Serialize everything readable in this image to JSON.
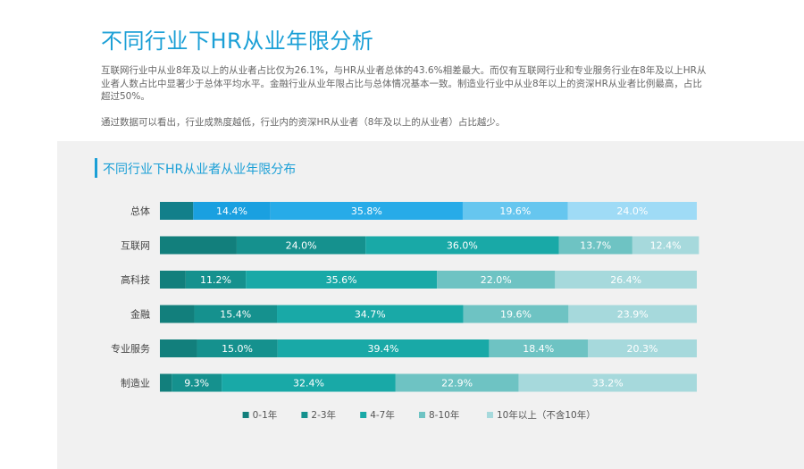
{
  "page": {
    "title": "不同行业下HR从业年限分析",
    "paragraph1": "互联网行业中从业8年及以上的从业者占比仅为26.1%，与HR从业者总体的43.6%相差最大。而仅有互联网行业和专业服务行业在8年及以上HR从业者人数占比中显著少于总体平均水平。金融行业从业年限占比与总体情况基本一致。制造业行业中从业8年以上的资深HR从业者比例最高，占比超过50%。",
    "paragraph2": "通过数据可以看出，行业成熟度越低，行业内的资深HR从业者（8年及以上的从业者）占比越少。"
  },
  "chart_data": {
    "type": "bar",
    "orientation": "horizontal",
    "stacked": true,
    "normalized_percent": true,
    "title": "不同行业下HR从业者从业年限分布",
    "categories": [
      "总体",
      "互联网",
      "高科技",
      "金融",
      "专业服务",
      "制造业"
    ],
    "series": [
      {
        "name": "0-1年",
        "color": "#127f8a",
        "values": [
          6.2,
          14.3,
          4.8,
          6.4,
          6.9,
          2.2
        ],
        "labels": [
          "",
          "",
          "",
          "",
          "",
          ""
        ]
      },
      {
        "name": "2-3年",
        "color": "#1aa0e0",
        "values": [
          14.4,
          24.0,
          11.2,
          15.4,
          15.0,
          9.3
        ],
        "labels": [
          "14.4%",
          "24.0%",
          "11.2%",
          "15.4%",
          "15.0%",
          "9.3%"
        ]
      },
      {
        "name": "4-7年",
        "color": "#27abe8",
        "values": [
          35.8,
          36.0,
          35.6,
          34.7,
          39.4,
          32.4
        ],
        "labels": [
          "35.8%",
          "36.0%",
          "35.6%",
          "34.7%",
          "39.4%",
          "32.4%"
        ]
      },
      {
        "name": "8-10年",
        "color": "#66c6ef",
        "values": [
          19.6,
          13.7,
          22.0,
          19.6,
          18.4,
          22.9
        ],
        "labels": [
          "19.6%",
          "13.7%",
          "22.0%",
          "19.6%",
          "18.4%",
          "22.9%"
        ]
      },
      {
        "name": "10年以上（不含10年）",
        "color": "#9fdbf6",
        "values": [
          24.0,
          12.4,
          26.4,
          23.9,
          20.3,
          33.2
        ],
        "labels": [
          "24.0%",
          "12.4%",
          "26.4%",
          "23.9%",
          "20.3%",
          "33.2%"
        ]
      }
    ],
    "row_palette_other": [
      "#127f7c",
      "#15918e",
      "#19a9a7",
      "#6ec3c3",
      "#a6d9dc"
    ],
    "xlim": [
      0,
      100
    ],
    "legend_position": "bottom-center",
    "grid": false
  }
}
